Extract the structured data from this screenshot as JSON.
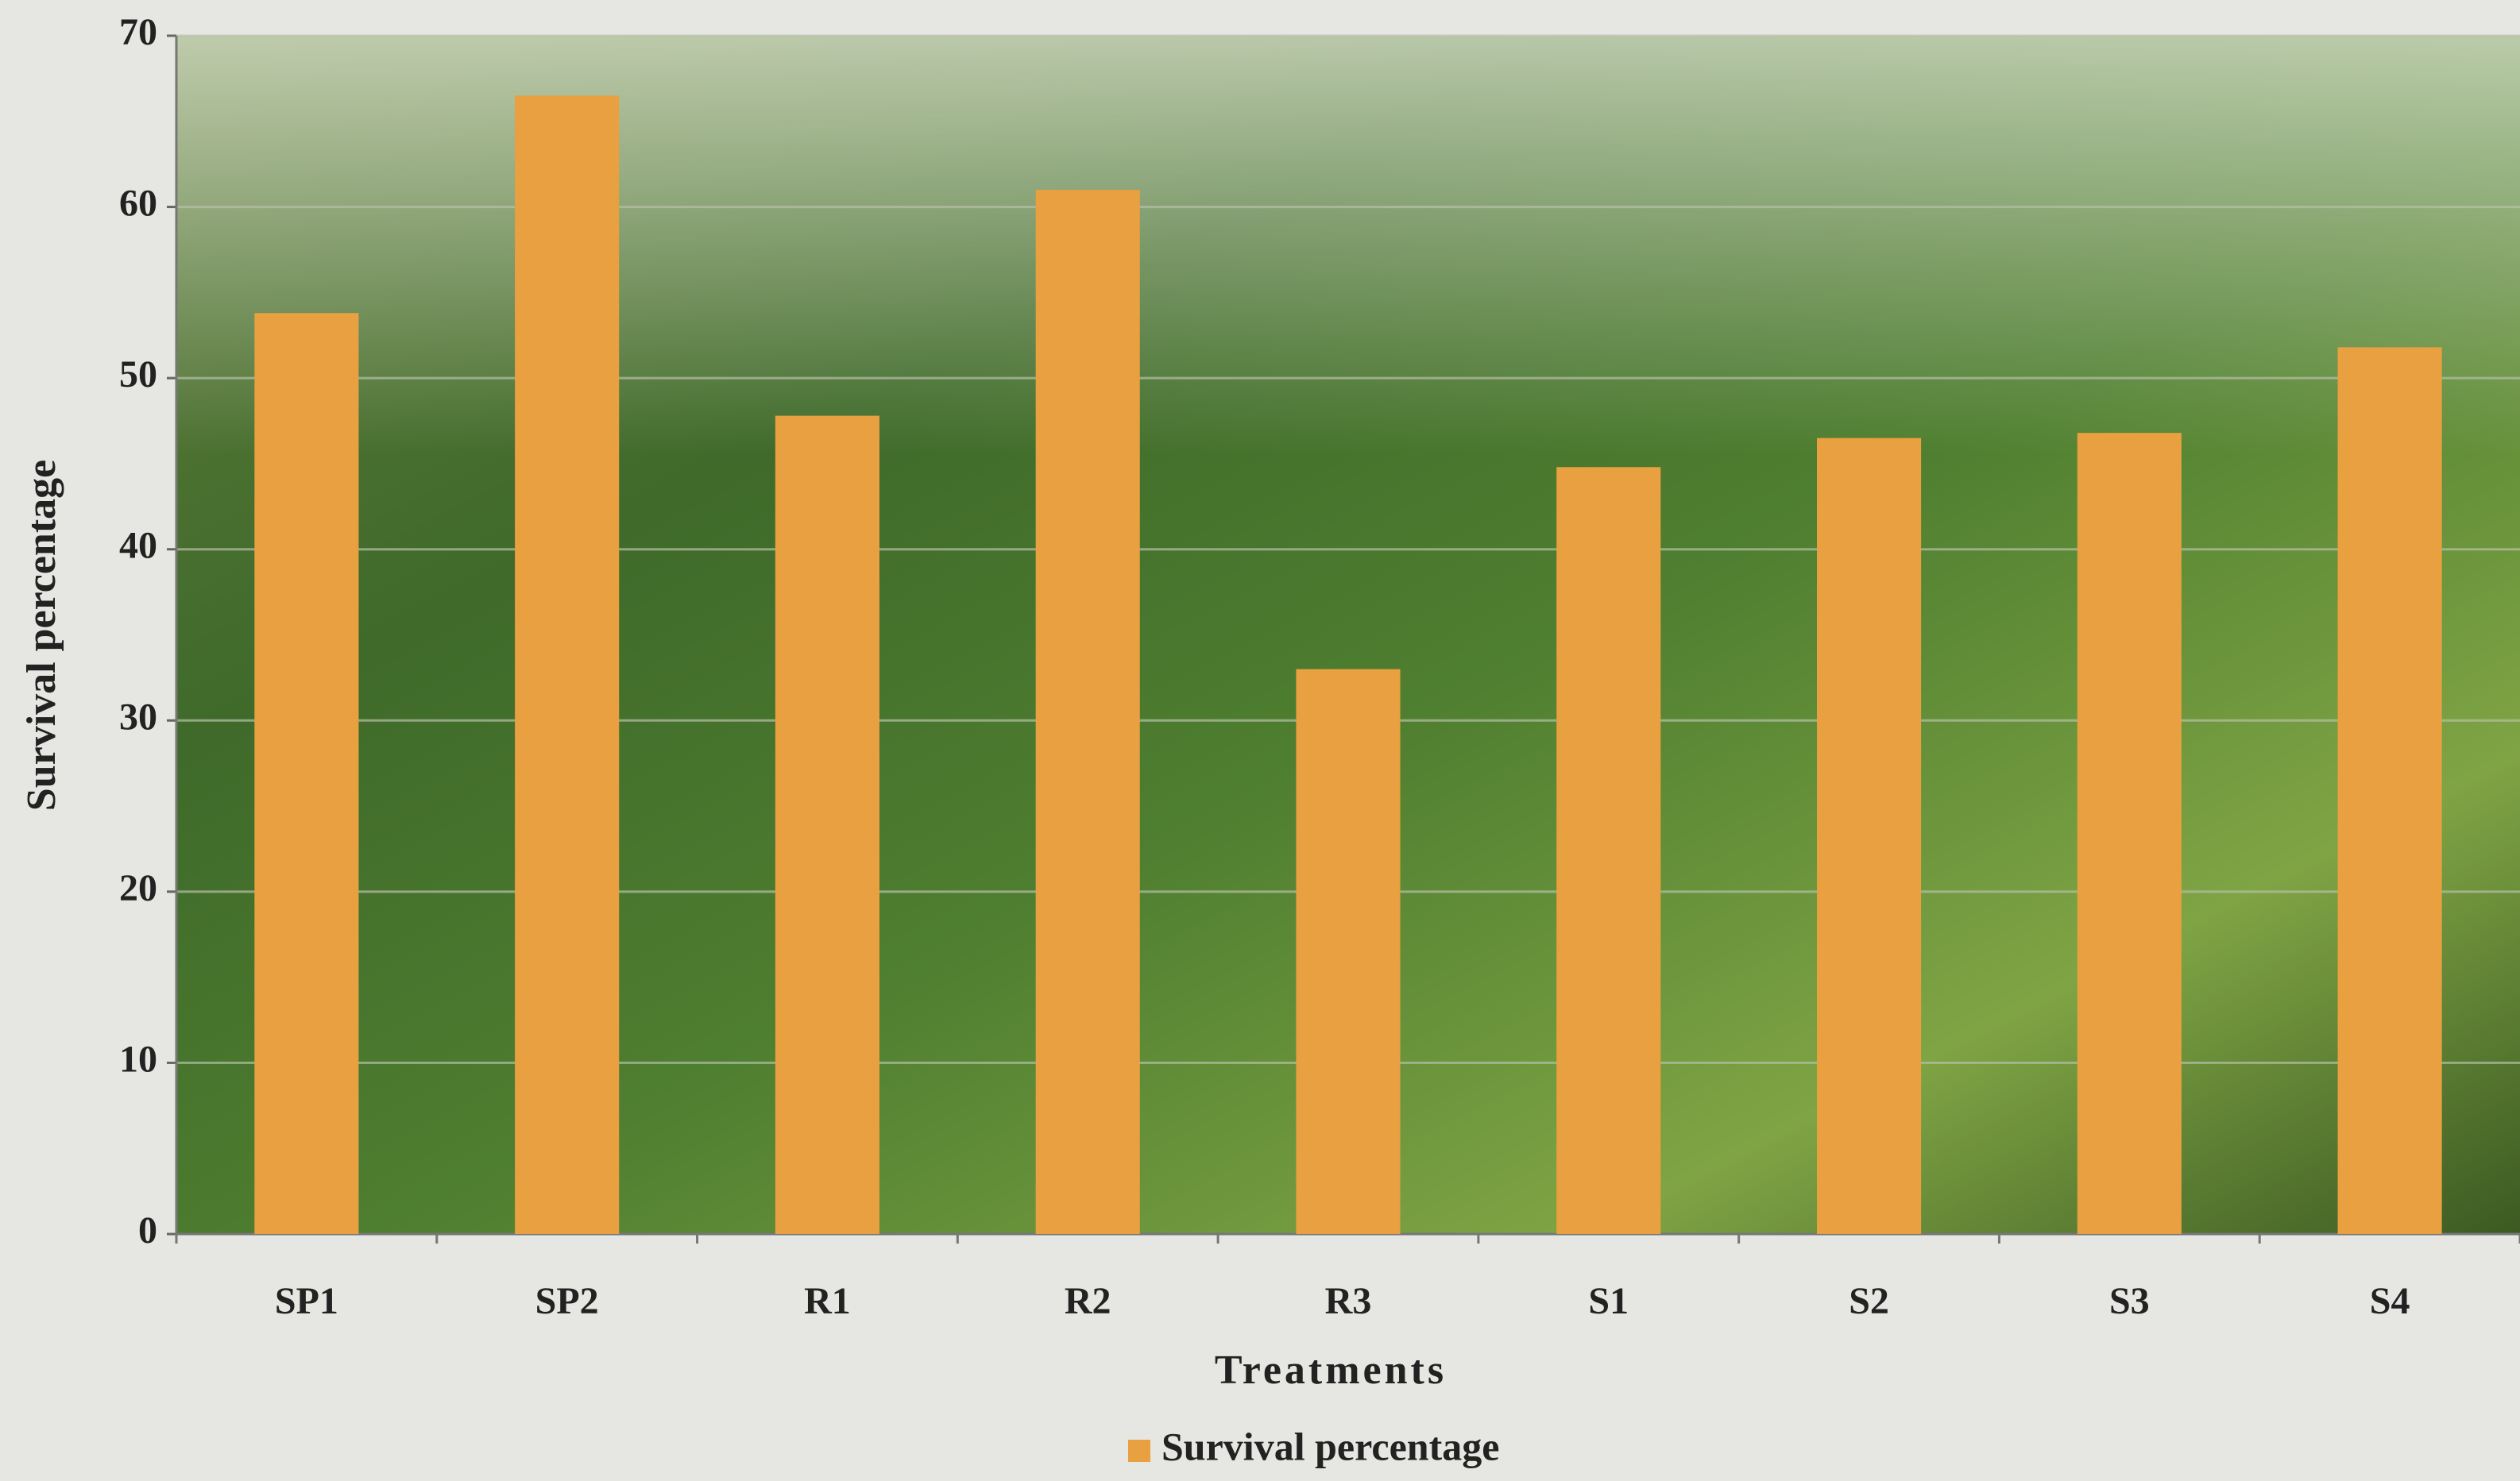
{
  "chart_data": {
    "type": "bar",
    "categories": [
      "SP1",
      "SP2",
      "R1",
      "R2",
      "R3",
      "S1",
      "S2",
      "S3",
      "S4"
    ],
    "series": [
      {
        "name": "Survival percentage",
        "color": "#e8a040",
        "values": [
          53.8,
          66.5,
          47.8,
          61,
          33,
          44.8,
          46.5,
          46.8,
          51.8
        ]
      }
    ],
    "x_label": "Treatments",
    "y_label": "Survival percentage",
    "ylim": [
      0,
      70
    ],
    "yticks": [
      0,
      10,
      20,
      30,
      40,
      50,
      60,
      70
    ],
    "grid": true,
    "legend": "bottom"
  }
}
